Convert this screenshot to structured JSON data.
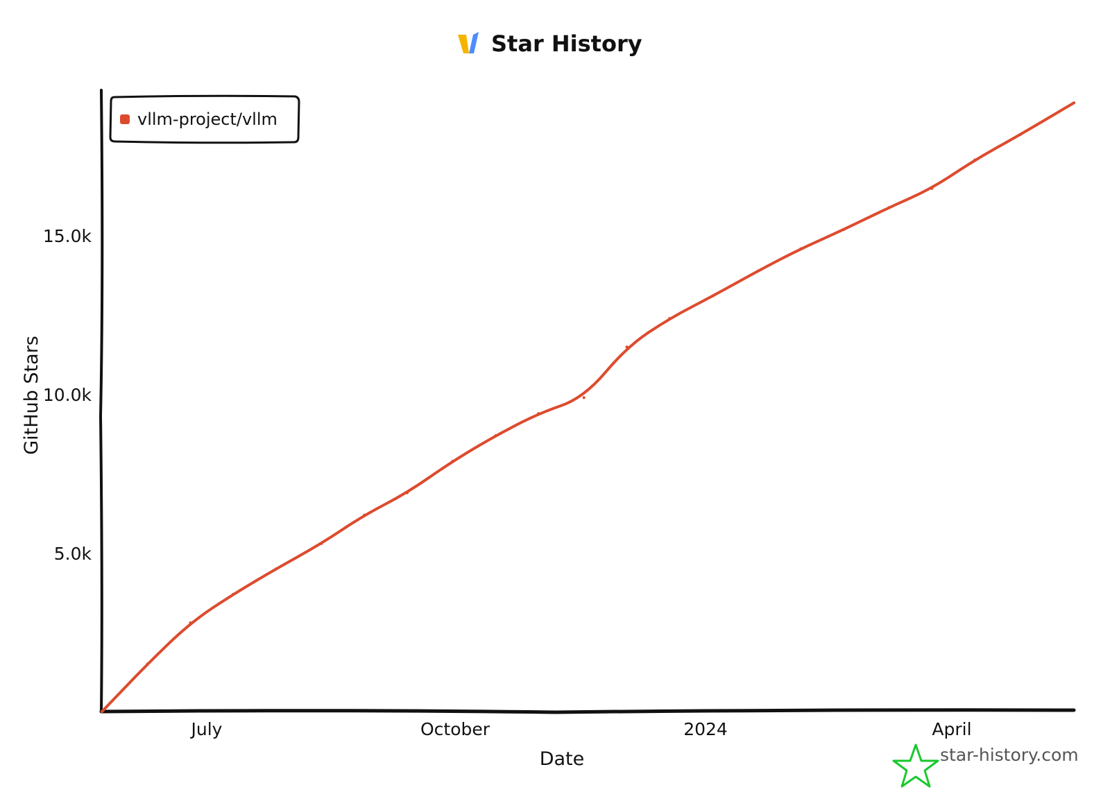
{
  "chart_data": {
    "type": "line",
    "title": "Star History",
    "xlabel": "Date",
    "ylabel": "GitHub Stars",
    "x_ticks": [
      "July",
      "October",
      "2024",
      "April"
    ],
    "y_ticks": [
      "5.0k",
      "10.0k",
      "15.0k"
    ],
    "ylim": [
      0,
      19600
    ],
    "xlim": [
      "2023-06-01",
      "2024-05-29"
    ],
    "grid": false,
    "legend_position": "top-left",
    "series": [
      {
        "name": "vllm-project/vllm",
        "color": "#dd4b2e",
        "x": [
          "2023-06-01",
          "2023-06-18",
          "2023-07-04",
          "2023-07-20",
          "2023-08-05",
          "2023-08-22",
          "2023-09-07",
          "2023-09-23",
          "2023-10-10",
          "2023-10-26",
          "2023-11-11",
          "2023-11-28",
          "2023-12-14",
          "2023-12-30",
          "2024-01-15",
          "2024-02-01",
          "2024-02-17",
          "2024-03-04",
          "2024-03-21",
          "2024-04-06",
          "2024-04-22",
          "2024-05-09",
          "2024-05-29"
        ],
        "values": [
          0,
          1500,
          2800,
          3700,
          4500,
          5300,
          6200,
          6900,
          7900,
          8700,
          9400,
          9900,
          11500,
          12400,
          13100,
          13900,
          14600,
          15200,
          15900,
          16500,
          17400,
          18200,
          19200
        ]
      }
    ]
  },
  "watermark": "star-history.com",
  "colors": {
    "line": "#dd4b2e",
    "axis": "#111111",
    "logo_yellow": "#f4b400",
    "logo_blue": "#4e8cff",
    "watermark_star": "#19c82d"
  }
}
